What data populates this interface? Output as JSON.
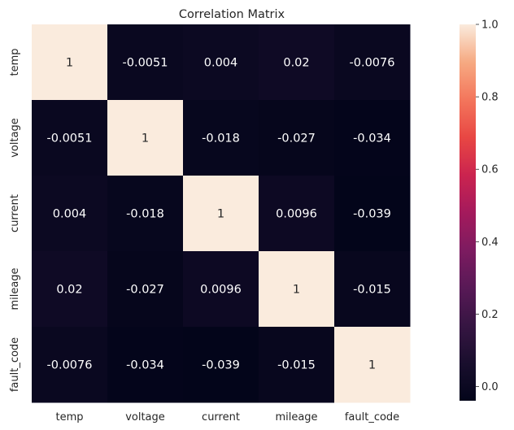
{
  "chart_data": {
    "type": "heatmap",
    "title": "Correlation Matrix",
    "x_labels": [
      "temp",
      "voltage",
      "current",
      "mileage",
      "fault_code"
    ],
    "y_labels": [
      "temp",
      "voltage",
      "current",
      "mileage",
      "fault_code"
    ],
    "values": [
      [
        1,
        -0.0051,
        0.004,
        0.02,
        -0.0076
      ],
      [
        -0.0051,
        1,
        -0.018,
        -0.027,
        -0.034
      ],
      [
        0.004,
        -0.018,
        1,
        0.0096,
        -0.039
      ],
      [
        0.02,
        -0.027,
        0.0096,
        1,
        -0.015
      ],
      [
        -0.0076,
        -0.034,
        -0.039,
        -0.015,
        1
      ]
    ],
    "annotations": [
      [
        "1",
        "-0.0051",
        "0.004",
        "0.02",
        "-0.0076"
      ],
      [
        "-0.0051",
        "1",
        "-0.018",
        "-0.027",
        "-0.034"
      ],
      [
        "0.004",
        "-0.018",
        "1",
        "0.0096",
        "-0.039"
      ],
      [
        "0.02",
        "-0.027",
        "0.0096",
        "1",
        "-0.015"
      ],
      [
        "-0.0076",
        "-0.034",
        "-0.039",
        "-0.015",
        "1"
      ]
    ],
    "colorbar": {
      "vmin": -0.039,
      "vmax": 1.0,
      "ticks": [
        0.0,
        0.2,
        0.4,
        0.6,
        0.8,
        1.0
      ],
      "tick_labels": [
        "0.0",
        "0.2",
        "0.4",
        "0.6",
        "0.8",
        "1.0"
      ]
    },
    "colormap": "rocket"
  }
}
